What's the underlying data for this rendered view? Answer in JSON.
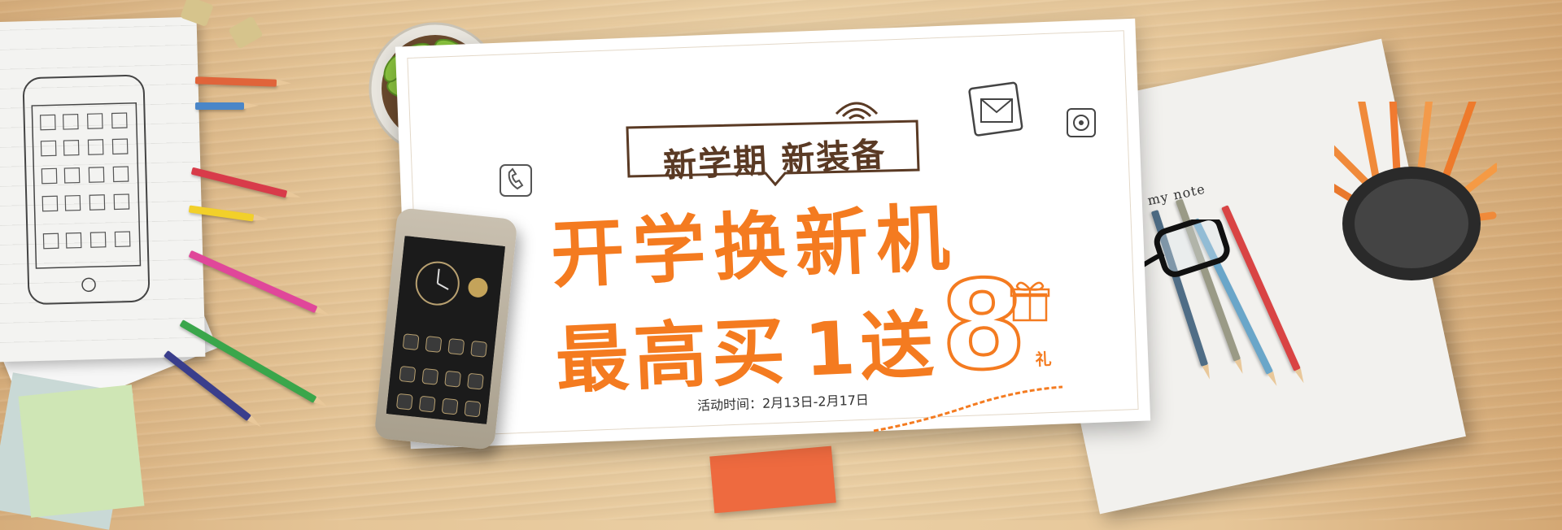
{
  "banner": {
    "badge_text": "新学期 新装备",
    "headline_line1": "开学换新机",
    "headline_line2_prefix": "最高买",
    "headline_line2_num1": "1",
    "headline_line2_mid": "送",
    "headline_line2_num2": "8",
    "headline_line2_suffix": "礼",
    "activity_time": "活动时间：2月13日-2月17日"
  },
  "notebook": {
    "title": "my note"
  },
  "colors": {
    "accent_orange": "#f47b20",
    "badge_brown": "#5a3a24",
    "wood_light": "#ebd0a5",
    "wood_dark": "#d4a874"
  },
  "icons": [
    "wifi-icon",
    "phone-icon",
    "envelope-icon",
    "music-icon",
    "gift-icon",
    "plant-icon",
    "glasses-icon",
    "pencil-icon"
  ]
}
